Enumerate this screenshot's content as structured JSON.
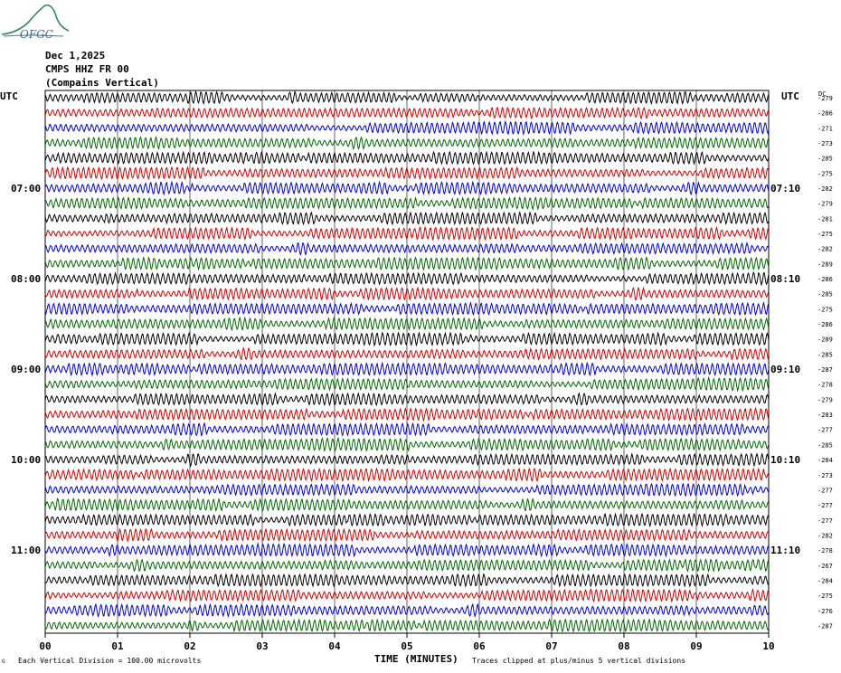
{
  "logo": {
    "text": "OFGC",
    "icon": "ofgc-mountain-logo"
  },
  "header": {
    "date": "Dec 1,2025",
    "station": "CMPS HHZ FR 00",
    "description": "(Compains Vertical)"
  },
  "labels": {
    "utc_left": "UTC",
    "utc_right": "UTC",
    "dc": "DC",
    "xlabel": "TIME (MINUTES)",
    "division_note": "Each Vertical Division =  100.00 microvolts",
    "clip_note": "Traces clipped at plus/minus 5 vertical divisions",
    "corner_mark": "G"
  },
  "colors": {
    "black": "#000000",
    "red": "#cc0000",
    "blue": "#0000cc",
    "green": "#006600",
    "grid": "#000000"
  },
  "chart_data": {
    "type": "line",
    "x_ticks": [
      "00",
      "01",
      "02",
      "03",
      "04",
      "05",
      "06",
      "07",
      "08",
      "09",
      "10"
    ],
    "xlim": [
      0,
      10
    ],
    "left_hour_labels": [
      {
        "row": 6,
        "label": "07:00"
      },
      {
        "row": 12,
        "label": "08:00"
      },
      {
        "row": 18,
        "label": "09:00"
      },
      {
        "row": 24,
        "label": "10:00"
      },
      {
        "row": 30,
        "label": "11:00"
      }
    ],
    "right_hour_labels": [
      {
        "row": 6,
        "label": "07:10"
      },
      {
        "row": 12,
        "label": "08:10"
      },
      {
        "row": 18,
        "label": "09:10"
      },
      {
        "row": 24,
        "label": "10:10"
      },
      {
        "row": 30,
        "label": "11:10"
      }
    ],
    "trace_color_cycle": [
      "black",
      "red",
      "blue",
      "green"
    ],
    "dc_offsets": [
      "-279",
      "-286",
      "-271",
      "-273",
      "-285",
      "-275",
      "-282",
      "-279",
      "-281",
      "-275",
      "-282",
      "-289",
      "-286",
      "-285",
      "-275",
      "-286",
      "-289",
      "-285",
      "-287",
      "-278",
      "-279",
      "-283",
      "-277",
      "-285",
      "-284",
      "-273",
      "-277",
      "-277",
      "-277",
      "-282",
      "-278",
      "-267",
      "-284",
      "-275",
      "-276",
      "-287"
    ]
  }
}
